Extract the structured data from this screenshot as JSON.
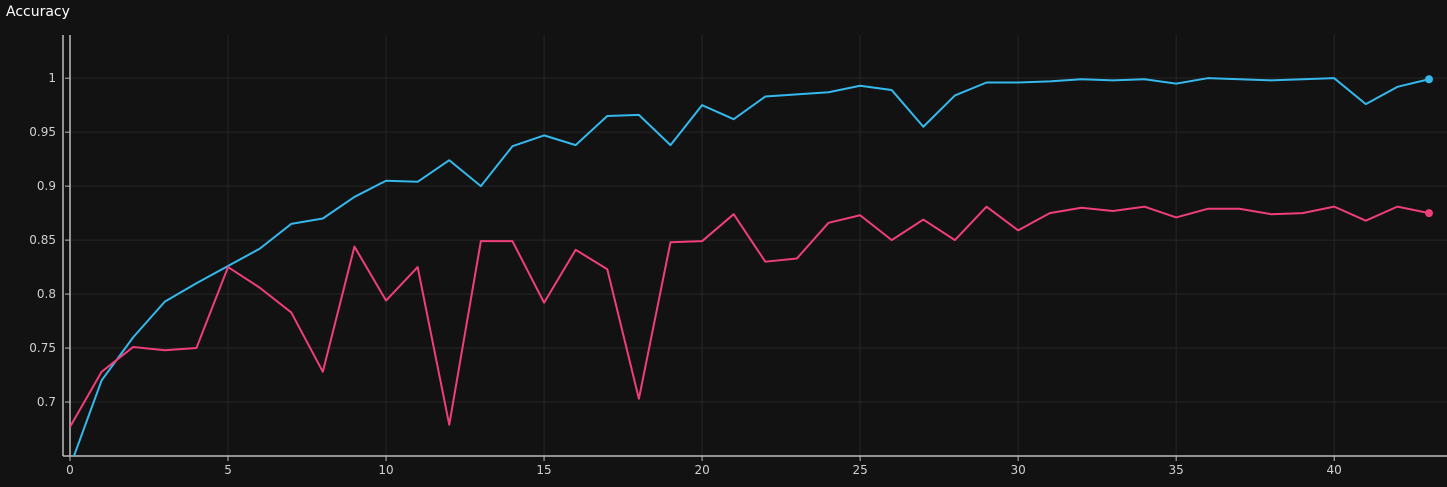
{
  "chart_data": {
    "type": "line",
    "title": "Accuracy",
    "xlabel": "",
    "ylabel": "",
    "xlim": [
      0,
      43
    ],
    "ylim": [
      0.65,
      1.04
    ],
    "x_ticks": [
      "0",
      "5",
      "10",
      "15",
      "20",
      "25",
      "30",
      "35",
      "40"
    ],
    "y_ticks": [
      "0.7",
      "0.75",
      "0.8",
      "0.85",
      "0.9",
      "0.95",
      "1"
    ],
    "grid": true,
    "legend": "none",
    "x": [
      0,
      1,
      2,
      3,
      4,
      5,
      6,
      7,
      8,
      9,
      10,
      11,
      12,
      13,
      14,
      15,
      16,
      17,
      18,
      19,
      20,
      21,
      22,
      23,
      24,
      25,
      26,
      27,
      28,
      29,
      30,
      31,
      32,
      33,
      34,
      35,
      36,
      37,
      38,
      39,
      40,
      41,
      42,
      43
    ],
    "series": [
      {
        "color": "#35b8ec",
        "values": [
          0.64,
          0.72,
          0.76,
          0.793,
          0.81,
          0.826,
          0.842,
          0.865,
          0.87,
          0.89,
          0.905,
          0.904,
          0.924,
          0.9,
          0.937,
          0.947,
          0.938,
          0.965,
          0.966,
          0.938,
          0.975,
          0.962,
          0.983,
          0.985,
          0.987,
          0.993,
          0.989,
          0.955,
          0.984,
          0.996,
          0.996,
          0.997,
          0.999,
          0.998,
          0.999,
          0.995,
          1.0,
          0.999,
          0.998,
          0.999,
          1.0,
          0.976,
          0.992,
          0.999
        ]
      },
      {
        "color": "#ef3e79",
        "values": [
          0.677,
          0.728,
          0.751,
          0.748,
          0.75,
          0.825,
          0.806,
          0.783,
          0.728,
          0.844,
          0.794,
          0.825,
          0.679,
          0.849,
          0.849,
          0.792,
          0.841,
          0.823,
          0.703,
          0.848,
          0.849,
          0.874,
          0.83,
          0.833,
          0.866,
          0.873,
          0.85,
          0.869,
          0.85,
          0.881,
          0.859,
          0.875,
          0.88,
          0.877,
          0.881,
          0.871,
          0.879,
          0.879,
          0.874,
          0.875,
          0.881,
          0.868,
          0.881,
          0.875
        ]
      }
    ]
  }
}
